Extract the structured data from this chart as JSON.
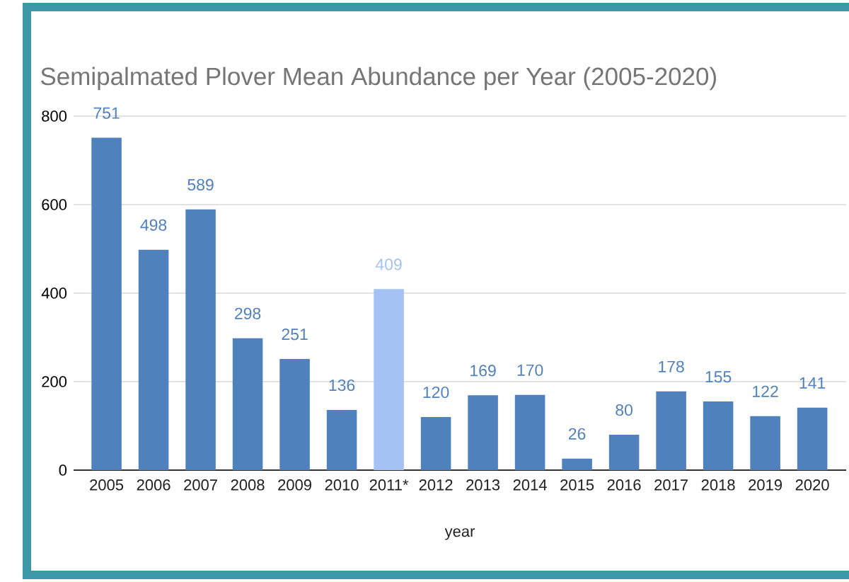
{
  "chart_data": {
    "type": "bar",
    "title": "Semipalmated Plover Mean Abundance per Year (2005-2020)",
    "xlabel": "year",
    "categories": [
      "2005",
      "2006",
      "2007",
      "2008",
      "2009",
      "2010",
      "2011*",
      "2012",
      "2013",
      "2014",
      "2015",
      "2016",
      "2017",
      "2018",
      "2019",
      "2020"
    ],
    "values": [
      751,
      498,
      589,
      298,
      251,
      136,
      409,
      120,
      169,
      170,
      26,
      80,
      178,
      155,
      122,
      141
    ],
    "colors": [
      "#4f81bd",
      "#4f81bd",
      "#4f81bd",
      "#4f81bd",
      "#4f81bd",
      "#4f81bd",
      "#a4c2f4",
      "#4f81bd",
      "#4f81bd",
      "#4f81bd",
      "#4f81bd",
      "#4f81bd",
      "#4f81bd",
      "#4f81bd",
      "#4f81bd",
      "#4f81bd"
    ],
    "ylim": [
      0,
      800
    ],
    "yticks": [
      0,
      200,
      400,
      600,
      800
    ],
    "grid": "y",
    "data_labels": true
  }
}
